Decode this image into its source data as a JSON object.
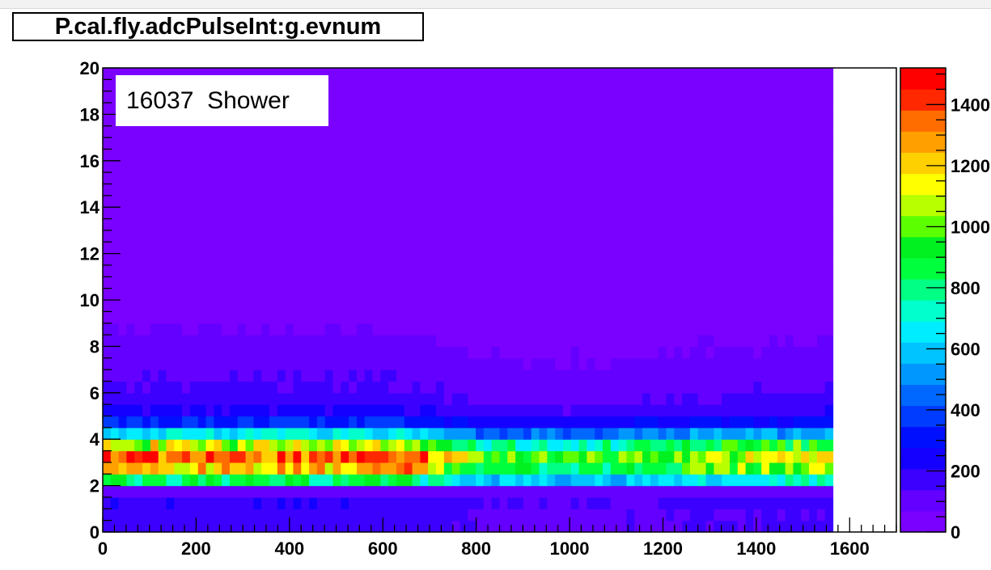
{
  "chart_data": {
    "type": "heatmap",
    "title": "P.cal.fly.adcPulseInt:g.evnum",
    "annotation": "16037  Shower",
    "xlabel": "",
    "ylabel": "",
    "xlim": [
      0,
      1700
    ],
    "ylim": [
      0,
      20
    ],
    "x_ticks": [
      "0",
      "200",
      "400",
      "600",
      "800",
      "1000",
      "1200",
      "1400",
      "1600"
    ],
    "y_ticks": [
      "0",
      "2",
      "4",
      "6",
      "8",
      "10",
      "12",
      "14",
      "16",
      "18",
      "20"
    ],
    "z_ticks": [
      "0",
      "200",
      "400",
      "600",
      "800",
      "1000",
      "1200",
      "1400"
    ],
    "zlim": [
      0,
      1520
    ],
    "bins": {
      "x_count": 100,
      "x_range": [
        0,
        1700
      ],
      "y_count": 40,
      "y_range": [
        0,
        20
      ]
    },
    "data_extent_x": [
      0,
      1570
    ],
    "grid": false,
    "palette": [
      "#7a00ff",
      "#6400ff",
      "#3c00ff",
      "#1400ff",
      "#0010ff",
      "#003cff",
      "#0068ff",
      "#0098ff",
      "#00c4ff",
      "#00ecff",
      "#00ffcc",
      "#00ff84",
      "#00ff3c",
      "#00f020",
      "#5cff00",
      "#b8ff00",
      "#ffff00",
      "#ffd000",
      "#ffa000",
      "#ff6c00",
      "#ff2800",
      "#ff0000"
    ],
    "intensity_profile": {
      "description_units": "counts per bin (approx.)",
      "peak_y": 3.2,
      "peak_counts_x_0_to_700": 1400,
      "peak_counts_x_800_to_1570": 1200,
      "low_band_y": [
        1.5,
        2.0
      ],
      "low_band_counts": 120
    }
  }
}
